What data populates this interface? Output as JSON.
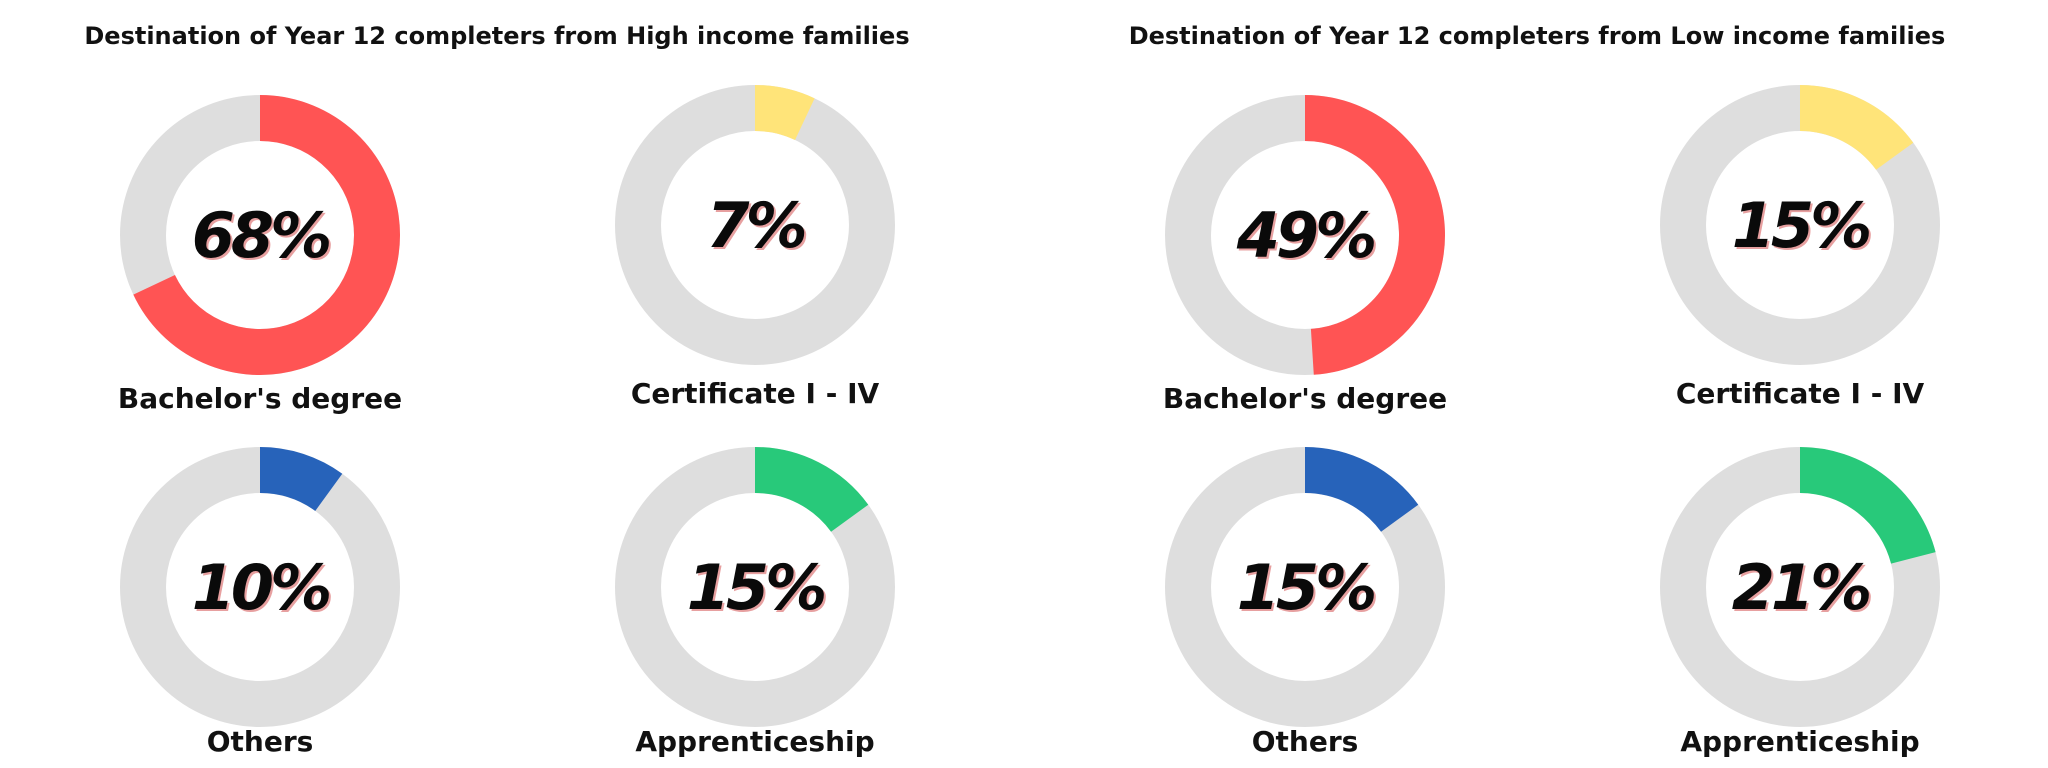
{
  "track_color": "#dedede",
  "chart_data": [
    {
      "type": "pie",
      "title": "Destination of Year 12 completers from High income families",
      "slices": [
        {
          "label": "Bachelor's degree",
          "value": 68,
          "display": "68%",
          "color": "#ff5454"
        },
        {
          "label": "Certificate I - IV",
          "value": 7,
          "display": "7%",
          "color": "#ffe479"
        },
        {
          "label": "Others",
          "value": 10,
          "display": "10%",
          "color": "#2763ba"
        },
        {
          "label": "Apprenticeship",
          "value": 15,
          "display": "15%",
          "color": "#28c97a"
        }
      ]
    },
    {
      "type": "pie",
      "title": "Destination of Year 12 completers from Low income families",
      "slices": [
        {
          "label": "Bachelor's degree",
          "value": 49,
          "display": "49%",
          "color": "#ff5454"
        },
        {
          "label": "Certificate I - IV",
          "value": 15,
          "display": "15%",
          "color": "#ffe479"
        },
        {
          "label": "Others",
          "value": 15,
          "display": "15%",
          "color": "#2763ba"
        },
        {
          "label": "Apprenticeship",
          "value": 21,
          "display": "21%",
          "color": "#28c97a"
        }
      ]
    }
  ]
}
